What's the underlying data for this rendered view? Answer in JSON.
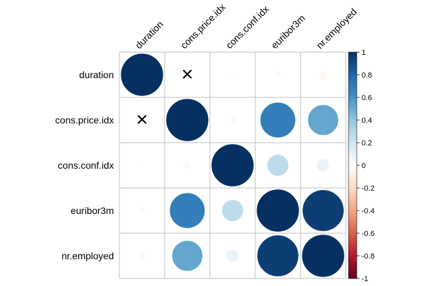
{
  "chart_data": {
    "type": "heatmap",
    "style": "corrplot-circle",
    "variables": [
      "duration",
      "cons.price.idx",
      "cons.conf.idx",
      "euribor3m",
      "nr.employed"
    ],
    "matrix": [
      [
        1.0,
        null,
        0.01,
        -0.03,
        -0.04
      ],
      [
        null,
        1.0,
        0.03,
        0.69,
        0.52
      ],
      [
        0.01,
        0.03,
        1.0,
        0.26,
        0.09
      ],
      [
        -0.03,
        0.69,
        0.26,
        1.0,
        0.95
      ],
      [
        -0.04,
        0.52,
        0.09,
        0.95,
        1.0
      ]
    ],
    "insignificant_marker": "×",
    "colorbar": {
      "range": [
        -1,
        1
      ],
      "ticks": [
        "1",
        "0.8",
        "0.6",
        "0.4",
        "0.2",
        "0",
        "-0.2",
        "-0.4",
        "-0.6",
        "-0.8",
        "-1"
      ],
      "palette": [
        "#67001F",
        "#B2182B",
        "#D6604D",
        "#F4A582",
        "#FDDBC7",
        "#FFFFFF",
        "#D1E5F0",
        "#92C5DE",
        "#4393C3",
        "#2166AC",
        "#053061"
      ]
    },
    "grid": true
  }
}
